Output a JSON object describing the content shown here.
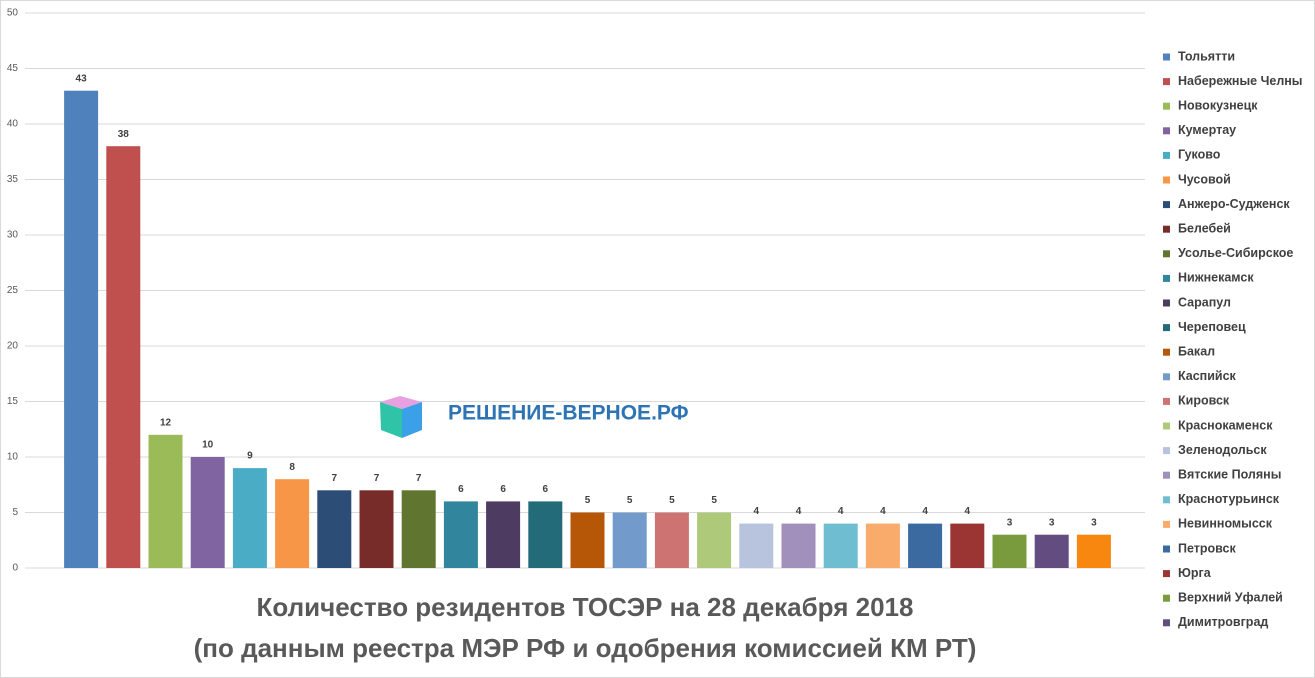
{
  "chart_data": {
    "type": "bar",
    "title": "Количество резидентов ТОСЭР на 28 декабря 2018",
    "subtitle": "(по данным реестра МЭР РФ и одобрения комиссией КМ РТ)",
    "watermark": "РЕШЕНИЕ-ВЕРНОЕ.РФ",
    "categories": [
      "Тольятти",
      "Набережные Челны",
      "Новокузнецк",
      "Кумертау",
      "Гуково",
      "Чусовой",
      "Анжеро-Судженск",
      "Белебей",
      "Усолье-Сибирское",
      "Нижнекамск",
      "Сарапул",
      "Череповец",
      "Бакал",
      "Каспийск",
      "Кировск",
      "Краснокаменск",
      "Зеленодольск",
      "Вятские Поляны",
      "Краснотурьинск",
      "Невинномысск",
      "Петровск",
      "Юрга",
      "Верхний Уфалей",
      "Димитровград",
      null
    ],
    "values": [
      43,
      38,
      12,
      10,
      9,
      8,
      7,
      7,
      7,
      6,
      6,
      6,
      5,
      5,
      5,
      5,
      4,
      4,
      4,
      4,
      4,
      4,
      3,
      3,
      3
    ],
    "colors": [
      "#4f81bd",
      "#c0504d",
      "#9bbb59",
      "#8064a2",
      "#4bacc6",
      "#f79646",
      "#2c4d75",
      "#772c2a",
      "#5f7530",
      "#31859c",
      "#4d3b62",
      "#246b7a",
      "#b65708",
      "#729aca",
      "#cd7371",
      "#afc97a",
      "#b8c3dd",
      "#a18fbc",
      "#6fbdd1",
      "#f9ab6b",
      "#3a6aa0",
      "#9b3533",
      "#7a9a3e",
      "#634d80",
      "#f7870f"
    ],
    "ylim": [
      0,
      50
    ],
    "yticks": [
      0,
      5,
      10,
      15,
      20,
      25,
      30,
      35,
      40,
      45,
      50
    ],
    "grid": true,
    "legend": "right"
  }
}
